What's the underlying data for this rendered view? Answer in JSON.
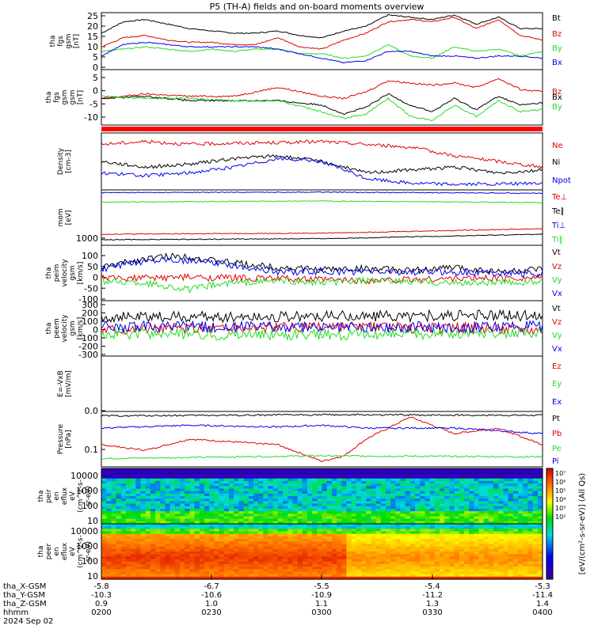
{
  "title": "P5 (TH-A) fields and on-board moments overview",
  "colors": {
    "black": "#000000",
    "red": "#e00000",
    "green": "#22dd22",
    "blue": "#0000ee",
    "frame": "#000000",
    "date_band": "#ff0000"
  },
  "chart_data": [
    {
      "type": "line",
      "id": "fgs-gsm-mag",
      "ylabel_lines": [
        "tha",
        "fgs",
        "gsm",
        "[nT]"
      ],
      "ylim": [
        0,
        25
      ],
      "yticks": [
        "0",
        "5",
        "10",
        "15",
        "20",
        "25"
      ],
      "series": [
        {
          "name": "Bt",
          "color": "#000000",
          "x": [
            0,
            0.05,
            0.1,
            0.15,
            0.2,
            0.25,
            0.3,
            0.35,
            0.4,
            0.45,
            0.5,
            0.55,
            0.6,
            0.65,
            0.7,
            0.75,
            0.8,
            0.85,
            0.9,
            0.95,
            1
          ],
          "y": [
            16,
            21,
            22,
            20,
            18,
            17,
            16,
            16,
            17,
            15,
            14,
            17,
            19,
            24,
            23,
            22,
            24,
            20,
            23,
            18,
            18
          ]
        },
        {
          "name": "Bz",
          "color": "#e00000",
          "x": [
            0,
            0.05,
            0.1,
            0.15,
            0.2,
            0.25,
            0.3,
            0.35,
            0.4,
            0.45,
            0.5,
            0.55,
            0.6,
            0.65,
            0.7,
            0.75,
            0.8,
            0.85,
            0.9,
            0.95,
            1
          ],
          "y": [
            10,
            14,
            15,
            13,
            12,
            12,
            11,
            11,
            14,
            10,
            9,
            13,
            16,
            21,
            22,
            21,
            23,
            18,
            22,
            15,
            13
          ]
        },
        {
          "name": "By",
          "color": "#22dd22",
          "x": [
            0,
            0.05,
            0.1,
            0.15,
            0.2,
            0.25,
            0.3,
            0.35,
            0.4,
            0.45,
            0.5,
            0.55,
            0.6,
            0.65,
            0.7,
            0.75,
            0.8,
            0.85,
            0.9,
            0.95,
            1
          ],
          "y": [
            8,
            9,
            10,
            9,
            8,
            9,
            8,
            9,
            9,
            7,
            7,
            5,
            6,
            11,
            6,
            5,
            10,
            8,
            9,
            6,
            8
          ]
        },
        {
          "name": "Bx",
          "color": "#0000ee",
          "x": [
            0,
            0.05,
            0.1,
            0.15,
            0.2,
            0.25,
            0.3,
            0.35,
            0.4,
            0.45,
            0.5,
            0.55,
            0.6,
            0.65,
            0.7,
            0.75,
            0.8,
            0.85,
            0.9,
            0.95,
            1
          ],
          "y": [
            6,
            11,
            12,
            11,
            10,
            10,
            10,
            10,
            9,
            7,
            5,
            3,
            4,
            8,
            8,
            6,
            6,
            5,
            6,
            6,
            5
          ]
        }
      ]
    },
    {
      "type": "line",
      "id": "fgs-gsm-gsm",
      "ylabel_lines": [
        "tha",
        "fgs",
        "gsm",
        "gsm",
        "[nT]"
      ],
      "ylim": [
        -15,
        10
      ],
      "yticks": [
        "-10",
        "-5",
        "0",
        "5"
      ],
      "series": [
        {
          "name": "Bz",
          "color": "#e00000",
          "x": [
            0,
            0.1,
            0.2,
            0.3,
            0.4,
            0.5,
            0.55,
            0.6,
            0.65,
            0.7,
            0.75,
            0.8,
            0.85,
            0.9,
            0.95,
            1
          ],
          "y": [
            -3,
            -1,
            -2,
            -2,
            2,
            -2,
            -3,
            0,
            5,
            4,
            3,
            4,
            2,
            6,
            1,
            0
          ]
        },
        {
          "name": "Bx",
          "color": "#000000",
          "x": [
            0,
            0.1,
            0.2,
            0.3,
            0.4,
            0.5,
            0.55,
            0.6,
            0.65,
            0.7,
            0.75,
            0.8,
            0.85,
            0.9,
            0.95,
            1
          ],
          "y": [
            -3,
            -2,
            -4,
            -4,
            -4,
            -6,
            -10,
            -7,
            -1,
            -6,
            -9,
            -3,
            -8,
            -2,
            -6,
            -5
          ]
        },
        {
          "name": "By",
          "color": "#22dd22",
          "x": [
            0,
            0.1,
            0.2,
            0.3,
            0.4,
            0.5,
            0.55,
            0.6,
            0.65,
            0.7,
            0.75,
            0.8,
            0.85,
            0.9,
            0.95,
            1
          ],
          "y": [
            -2,
            -3,
            -3,
            -4,
            -4,
            -9,
            -12,
            -10,
            -3,
            -11,
            -13,
            -6,
            -11,
            -4,
            -9,
            -8
          ]
        }
      ]
    },
    {
      "type": "line",
      "id": "density",
      "ylabel_lines": [
        "Density",
        "[cm-3]"
      ],
      "series": [
        {
          "name": "Ne",
          "color": "#e00000",
          "x": [
            0,
            0.1,
            0.2,
            0.3,
            0.4,
            0.5,
            0.6,
            0.7,
            0.8,
            0.9,
            1
          ],
          "y": [
            0.8,
            0.85,
            0.8,
            0.82,
            0.83,
            0.85,
            0.8,
            0.75,
            0.6,
            0.5,
            0.4
          ]
        },
        {
          "name": "Ni",
          "color": "#000000",
          "x": [
            0,
            0.1,
            0.2,
            0.3,
            0.4,
            0.5,
            0.6,
            0.7,
            0.8,
            0.9,
            1
          ],
          "y": [
            0.5,
            0.4,
            0.45,
            0.55,
            0.6,
            0.5,
            0.3,
            0.35,
            0.4,
            0.3,
            0.35
          ]
        },
        {
          "name": "Npot",
          "color": "#0000ee",
          "x": [
            0,
            0.1,
            0.2,
            0.3,
            0.4,
            0.5,
            0.6,
            0.7,
            0.8,
            0.9,
            1
          ],
          "y": [
            0.3,
            0.25,
            0.3,
            0.4,
            0.55,
            0.5,
            0.2,
            0.12,
            0.1,
            0.1,
            0.12
          ]
        }
      ]
    },
    {
      "type": "line",
      "id": "temperature",
      "ylabel_lines": [
        "mom",
        "[eV]"
      ],
      "yticks": [
        "1000"
      ],
      "series": [
        {
          "name": "Te⊥",
          "color": "#e00000",
          "x": [
            0,
            0.5,
            1
          ],
          "y": [
            0.2,
            0.22,
            0.3
          ]
        },
        {
          "name": "Te∥",
          "color": "#000000",
          "x": [
            0,
            0.5,
            1
          ],
          "y": [
            0.1,
            0.12,
            0.2
          ]
        },
        {
          "name": "Ti⊥",
          "color": "#0000ee",
          "x": [
            0,
            0.5,
            1
          ],
          "y": [
            0.95,
            0.96,
            0.94
          ]
        },
        {
          "name": "Ti∥",
          "color": "#22dd22",
          "x": [
            0,
            0.5,
            1
          ],
          "y": [
            0.78,
            0.8,
            0.77
          ]
        }
      ]
    },
    {
      "type": "line",
      "id": "peim-velocity",
      "ylabel_lines": [
        "tha",
        "peim",
        "velocity",
        "gsm",
        "[km/s]"
      ],
      "ylim": [
        -100,
        150
      ],
      "yticks": [
        "-100",
        "-50",
        "0",
        "50",
        "100"
      ],
      "series": [
        {
          "name": "Vt",
          "color": "#000000",
          "x": [
            0,
            0.1,
            0.15,
            0.2,
            0.25,
            0.3,
            0.4,
            0.5,
            0.6,
            0.7,
            0.8,
            0.9,
            1
          ],
          "y": [
            50,
            90,
            100,
            100,
            80,
            70,
            50,
            40,
            45,
            35,
            50,
            30,
            40
          ]
        },
        {
          "name": "Vz",
          "color": "#e00000",
          "x": [
            0,
            0.2,
            0.4,
            0.6,
            0.8,
            1
          ],
          "y": [
            0,
            5,
            0,
            -10,
            0,
            5
          ]
        },
        {
          "name": "Vy",
          "color": "#22dd22",
          "x": [
            0,
            0.1,
            0.2,
            0.25,
            0.3,
            0.4,
            0.5,
            0.6,
            0.8,
            1
          ],
          "y": [
            -10,
            -20,
            -50,
            -30,
            -20,
            -10,
            -20,
            -10,
            -20,
            -15
          ]
        },
        {
          "name": "Vx",
          "color": "#0000ee",
          "x": [
            0,
            0.1,
            0.15,
            0.2,
            0.3,
            0.4,
            0.5,
            0.6,
            0.8,
            1
          ],
          "y": [
            40,
            80,
            90,
            80,
            60,
            30,
            30,
            30,
            30,
            20
          ]
        }
      ]
    },
    {
      "type": "line",
      "id": "peem-velocity",
      "ylabel_lines": [
        "tha",
        "peem",
        "velocity",
        "gsm",
        "[km/s]"
      ],
      "ylim": [
        -300,
        300
      ],
      "yticks": [
        "-300",
        "-200",
        "-100",
        "0",
        "100",
        "200",
        "300"
      ],
      "series": [
        {
          "name": "Vt",
          "color": "#000000",
          "x": [
            0,
            0.5,
            1
          ],
          "y": [
            120,
            130,
            140
          ]
        },
        {
          "name": "Vz",
          "color": "#e00000",
          "x": [
            0,
            0.5,
            1
          ],
          "y": [
            0,
            10,
            0
          ]
        },
        {
          "name": "Vy",
          "color": "#22dd22",
          "x": [
            0,
            0.5,
            1
          ],
          "y": [
            -60,
            -70,
            -50
          ]
        },
        {
          "name": "Vx",
          "color": "#0000ee",
          "x": [
            0,
            0.5,
            1
          ],
          "y": [
            20,
            10,
            20
          ]
        }
      ]
    },
    {
      "type": "line",
      "id": "efield",
      "ylabel_lines": [
        "E=-VxB",
        "[mV/m]"
      ],
      "series": [
        {
          "name": "Ez",
          "color": "#e00000",
          "x": [],
          "y": []
        },
        {
          "name": "Ey",
          "color": "#22dd22",
          "x": [],
          "y": []
        },
        {
          "name": "Ex",
          "color": "#0000ee",
          "x": [],
          "y": []
        }
      ]
    },
    {
      "type": "line",
      "id": "pressure",
      "ylabel_lines": [
        "Pressure",
        "[nPa]"
      ],
      "yticks": [
        "0.1",
        "0.0"
      ],
      "series": [
        {
          "name": "Pt",
          "color": "#000000",
          "x": [
            0,
            0.5,
            1
          ],
          "y": [
            0.92,
            0.94,
            0.93
          ]
        },
        {
          "name": "Pb",
          "color": "#e00000",
          "x": [
            0,
            0.1,
            0.2,
            0.3,
            0.4,
            0.5,
            0.55,
            0.6,
            0.7,
            0.8,
            0.9,
            1
          ],
          "y": [
            0.4,
            0.3,
            0.5,
            0.45,
            0.4,
            0.1,
            0.2,
            0.5,
            0.9,
            0.6,
            0.7,
            0.4
          ]
        },
        {
          "name": "Pe",
          "color": "#22dd22",
          "x": [
            0,
            0.5,
            1
          ],
          "y": [
            0.15,
            0.2,
            0.18
          ]
        },
        {
          "name": "Pi",
          "color": "#0000ee",
          "x": [
            0,
            0.2,
            0.4,
            0.5,
            0.6,
            0.8,
            1
          ],
          "y": [
            0.7,
            0.75,
            0.72,
            0.75,
            0.7,
            0.7,
            0.6
          ]
        }
      ]
    },
    {
      "type": "heatmap",
      "id": "peir-spectrogram",
      "ylabel_lines": [
        "tha",
        "peir",
        "en",
        "eflux",
        "eV",
        "(cm^2-s-",
        "sr-eV)"
      ],
      "yticks": [
        "10",
        "100",
        "1000",
        "10000"
      ]
    },
    {
      "type": "heatmap",
      "id": "peer-spectrogram",
      "ylabel_lines": [
        "tha",
        "peer",
        "en",
        "eflux",
        "eV",
        "(cm^2-s-",
        "sr-eV)"
      ],
      "yticks": [
        "10",
        "100",
        "1000",
        "10000"
      ]
    }
  ],
  "colorbar": {
    "ticks_top": [
      "10⁷",
      "10⁶",
      "10⁵",
      "10⁴",
      "10³",
      "10²"
    ],
    "label": "[eV/(cm²-s-sr-eV)] (All Qs)"
  },
  "x_axis": {
    "rows": [
      {
        "label": "tha_X-GSM",
        "values": [
          "-5.8",
          "-6.7",
          "-5.5",
          "-5.4",
          "-5.3"
        ]
      },
      {
        "label": "tha_Y-GSM",
        "values": [
          "-10.3",
          "-10.6",
          "-10.9",
          "-11.2",
          "-11.4"
        ]
      },
      {
        "label": "tha_Z-GSM",
        "values": [
          "0.9",
          "1.0",
          "1.1",
          "1.3",
          "1.4"
        ]
      },
      {
        "label": "hhmm",
        "values": [
          "0200",
          "0230",
          "0300",
          "0330",
          "0400"
        ]
      }
    ],
    "date": "2024 Sep 02"
  }
}
